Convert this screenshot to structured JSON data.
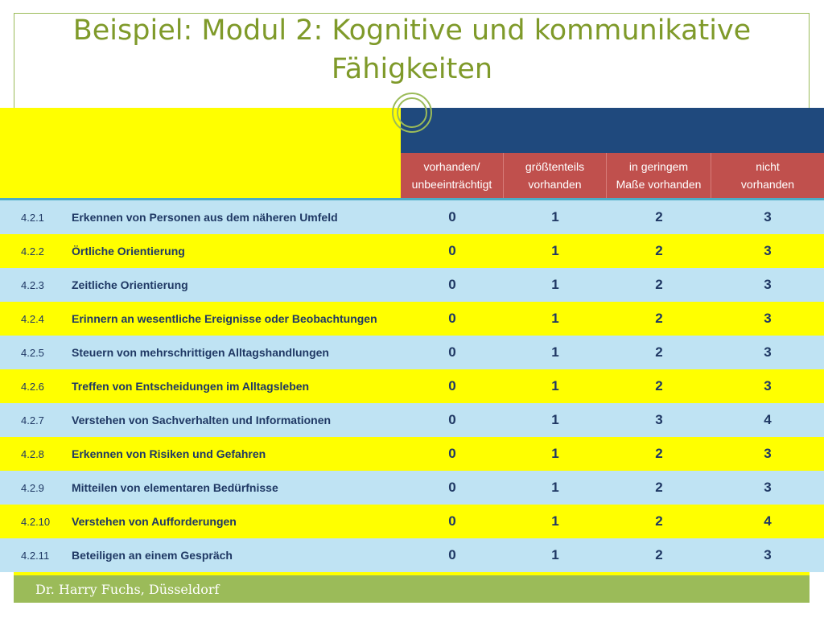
{
  "title": {
    "line1": "Beispiel: Modul 2: Kognitive und kommunikative",
    "line2": "Fähigkeiten"
  },
  "columns": [
    {
      "line1": "vorhanden/",
      "line2": "unbeeinträchtigt"
    },
    {
      "line1": "größtenteils",
      "line2": "vorhanden"
    },
    {
      "line1": "in geringem",
      "line2": "Maße vorhanden"
    },
    {
      "line1": "nicht",
      "line2": "vorhanden"
    }
  ],
  "rows": [
    {
      "id": "4.2.1",
      "label": "Erkennen von Personen aus dem näheren Umfeld",
      "values": [
        "0",
        "1",
        "2",
        "3"
      ]
    },
    {
      "id": "4.2.2",
      "label": "Örtliche Orientierung",
      "values": [
        "0",
        "1",
        "2",
        "3"
      ]
    },
    {
      "id": "4.2.3",
      "label": "Zeitliche Orientierung",
      "values": [
        "0",
        "1",
        "2",
        "3"
      ]
    },
    {
      "id": "4.2.4",
      "label": "Erinnern an wesentliche Ereignisse oder Beobachtungen",
      "values": [
        "0",
        "1",
        "2",
        "3"
      ]
    },
    {
      "id": "4.2.5",
      "label": "Steuern von mehrschrittigen Alltagshandlungen",
      "values": [
        "0",
        "1",
        "2",
        "3"
      ]
    },
    {
      "id": "4.2.6",
      "label": "Treffen von Entscheidungen im Alltagsleben",
      "values": [
        "0",
        "1",
        "2",
        "3"
      ]
    },
    {
      "id": "4.2.7",
      "label": "Verstehen von Sachverhalten und Informationen",
      "values": [
        "0",
        "1",
        "3",
        "4"
      ]
    },
    {
      "id": "4.2.8",
      "label": "Erkennen von Risiken und Gefahren",
      "values": [
        "0",
        "1",
        "2",
        "3"
      ]
    },
    {
      "id": "4.2.9",
      "label": "Mitteilen von elementaren Bedürfnisse",
      "values": [
        "0",
        "1",
        "2",
        "3"
      ]
    },
    {
      "id": "4.2.10",
      "label": "Verstehen von Aufforderungen",
      "values": [
        "0",
        "1",
        "2",
        "4"
      ]
    },
    {
      "id": "4.2.11",
      "label": "Beteiligen an einem Gespräch",
      "values": [
        "0",
        "1",
        "2",
        "3"
      ]
    }
  ],
  "footer": {
    "author": "Dr. Harry Fuchs, Düsseldorf"
  },
  "colors": {
    "title": "#7f9a2a",
    "header_blue": "#1f497d",
    "header_red": "#c0504d",
    "row_blue": "#bfe3f3",
    "row_yellow": "#ffff00",
    "footer": "#9bbb59"
  }
}
